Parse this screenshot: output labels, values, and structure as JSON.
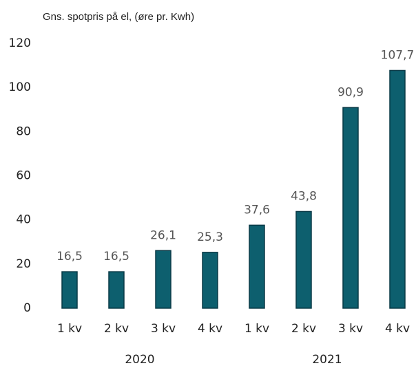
{
  "chart_data": {
    "type": "bar",
    "title": "Gns. spotpris på el, (øre pr. Kwh)",
    "categories": [
      "1 kv",
      "2 kv",
      "3 kv",
      "4 kv",
      "1 kv",
      "2 kv",
      "3 kv",
      "4 kv"
    ],
    "groups": [
      "2020",
      "2021"
    ],
    "values": [
      16.5,
      16.5,
      26.1,
      25.3,
      37.6,
      43.8,
      90.9,
      107.7
    ],
    "value_labels": [
      "16,5",
      "16,5",
      "26,1",
      "25,3",
      "37,6",
      "43,8",
      "90,9",
      "107,7"
    ],
    "color": "#0d5f6e",
    "ylim": [
      0,
      120
    ],
    "yticks": [
      0,
      20,
      40,
      60,
      80,
      100,
      120
    ],
    "grid": false
  }
}
